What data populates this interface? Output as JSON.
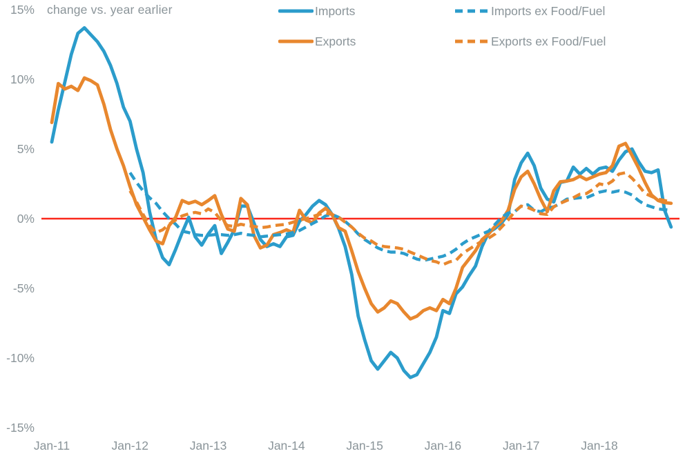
{
  "chart_data": {
    "type": "line",
    "title": "",
    "subtitle": "change vs. year earlier",
    "legend_position": "top",
    "grid": false,
    "ylim": [
      -15,
      15
    ],
    "y_tick_labels": [
      "15%",
      "10%",
      "5%",
      "0%",
      "-5%",
      "-10%",
      "-15%"
    ],
    "x_tick_labels": [
      "Jan-11",
      "Jan-12",
      "Jan-13",
      "Jan-14",
      "Jan-15",
      "Jan-16",
      "Jan-17",
      "Jan-18"
    ],
    "zero_line_color": "#fa271a",
    "axis_text_color": "#8a9499",
    "months": [
      "Jan-11",
      "Feb-11",
      "Mar-11",
      "Apr-11",
      "May-11",
      "Jun-11",
      "Jul-11",
      "Aug-11",
      "Sep-11",
      "Oct-11",
      "Nov-11",
      "Dec-11",
      "Jan-12",
      "Feb-12",
      "Mar-12",
      "Apr-12",
      "May-12",
      "Jun-12",
      "Jul-12",
      "Aug-12",
      "Sep-12",
      "Oct-12",
      "Nov-12",
      "Dec-12",
      "Jan-13",
      "Feb-13",
      "Mar-13",
      "Apr-13",
      "May-13",
      "Jun-13",
      "Jul-13",
      "Aug-13",
      "Sep-13",
      "Oct-13",
      "Nov-13",
      "Dec-13",
      "Jan-14",
      "Feb-14",
      "Mar-14",
      "Apr-14",
      "May-14",
      "Jun-14",
      "Jul-14",
      "Aug-14",
      "Sep-14",
      "Oct-14",
      "Nov-14",
      "Dec-14",
      "Jan-15",
      "Feb-15",
      "Mar-15",
      "Apr-15",
      "May-15",
      "Jun-15",
      "Jul-15",
      "Aug-15",
      "Sep-15",
      "Oct-15",
      "Nov-15",
      "Dec-15",
      "Jan-16",
      "Feb-16",
      "Mar-16",
      "Apr-16",
      "May-16",
      "Jun-16",
      "Jul-16",
      "Aug-16",
      "Sep-16",
      "Oct-16",
      "Nov-16",
      "Dec-16",
      "Jan-17",
      "Feb-17",
      "Mar-17",
      "Apr-17",
      "May-17",
      "Jun-17",
      "Jul-17",
      "Aug-17",
      "Sep-17",
      "Oct-17",
      "Nov-17",
      "Dec-17",
      "Jan-18",
      "Feb-18",
      "Mar-18",
      "Apr-18",
      "May-18",
      "Jun-18",
      "Jul-18",
      "Aug-18",
      "Sep-18",
      "Oct-18",
      "Nov-18",
      "Dec-18"
    ],
    "series": [
      {
        "name": "Imports",
        "color": "#2b9ccb",
        "dash": false,
        "values": [
          5.5,
          7.8,
          9.8,
          11.8,
          13.3,
          13.7,
          13.2,
          12.7,
          12.0,
          11.0,
          9.7,
          8.0,
          7.0,
          5.0,
          3.3,
          0.5,
          -1.5,
          -2.8,
          -3.3,
          -2.2,
          -1.0,
          0.1,
          -1.3,
          -1.9,
          -1.1,
          -0.5,
          -2.5,
          -1.7,
          -0.8,
          0.9,
          0.9,
          -0.3,
          -1.5,
          -2.0,
          -1.8,
          -2.0,
          -1.3,
          -1.2,
          -0.2,
          0.3,
          0.9,
          1.3,
          1.0,
          0.3,
          -0.7,
          -2.0,
          -4.0,
          -7.0,
          -8.7,
          -10.2,
          -10.8,
          -10.2,
          -9.6,
          -10.0,
          -10.9,
          -11.4,
          -11.2,
          -10.4,
          -9.6,
          -8.5,
          -6.6,
          -6.8,
          -5.4,
          -4.9,
          -4.1,
          -3.4,
          -2.0,
          -1.0,
          -0.7,
          -0.3,
          0.3,
          2.8,
          4.0,
          4.7,
          3.8,
          2.2,
          1.4,
          1.2,
          2.6,
          2.7,
          3.7,
          3.2,
          3.6,
          3.2,
          3.6,
          3.7,
          3.4,
          4.2,
          4.8,
          5.0,
          4.1,
          3.4,
          3.3,
          3.5,
          0.6,
          -0.6
        ]
      },
      {
        "name": "Exports",
        "color": "#e8872e",
        "dash": false,
        "values": [
          6.9,
          9.7,
          9.3,
          9.5,
          9.2,
          10.1,
          9.9,
          9.6,
          8.2,
          6.4,
          5.0,
          3.8,
          2.3,
          1.0,
          0.1,
          -0.8,
          -1.6,
          -1.8,
          -0.5,
          0.1,
          1.3,
          1.1,
          1.25,
          1.0,
          1.3,
          1.65,
          0.3,
          -0.75,
          -0.9,
          1.45,
          1.0,
          -1.2,
          -2.1,
          -1.9,
          -1.15,
          -1.0,
          -0.8,
          -1.0,
          0.6,
          -0.1,
          -0.3,
          0.4,
          0.75,
          0.3,
          -0.65,
          -0.9,
          -2.3,
          -3.8,
          -5.0,
          -6.1,
          -6.7,
          -6.4,
          -5.9,
          -6.1,
          -6.7,
          -7.2,
          -7.0,
          -6.6,
          -6.4,
          -6.6,
          -5.8,
          -6.1,
          -5.0,
          -3.5,
          -2.9,
          -2.3,
          -1.5,
          -1.1,
          -0.55,
          -0.15,
          0.6,
          2.1,
          3.0,
          3.4,
          2.5,
          1.4,
          0.5,
          2.0,
          2.65,
          2.7,
          2.8,
          3.05,
          2.8,
          3.0,
          3.2,
          3.3,
          3.8,
          5.2,
          5.4,
          4.55,
          3.65,
          2.6,
          1.7,
          1.3,
          1.15,
          1.1
        ]
      },
      {
        "name": "Imports ex Food/Fuel",
        "color": "#2b9ccb",
        "dash": true,
        "values": [
          null,
          null,
          null,
          null,
          null,
          null,
          null,
          null,
          null,
          null,
          null,
          null,
          3.3,
          2.6,
          2.0,
          1.5,
          1.1,
          0.5,
          0.0,
          -0.4,
          -0.9,
          -1.0,
          -1.15,
          -1.2,
          -1.2,
          -1.15,
          -1.15,
          -1.2,
          -1.15,
          -1.05,
          -1.15,
          -1.2,
          -1.3,
          -1.25,
          -1.2,
          -1.15,
          -1.1,
          -1.0,
          -0.85,
          -0.6,
          -0.35,
          -0.1,
          0.2,
          0.3,
          0.1,
          -0.2,
          -0.6,
          -1.1,
          -1.5,
          -1.8,
          -2.1,
          -2.3,
          -2.4,
          -2.4,
          -2.5,
          -2.7,
          -2.9,
          -3.0,
          -2.9,
          -2.8,
          -2.7,
          -2.5,
          -2.2,
          -1.8,
          -1.5,
          -1.3,
          -1.1,
          -0.9,
          -0.4,
          0.1,
          0.4,
          0.5,
          0.9,
          1.0,
          0.6,
          0.5,
          0.75,
          0.85,
          1.1,
          1.4,
          1.45,
          1.5,
          1.5,
          1.7,
          1.9,
          2.0,
          1.9,
          2.0,
          1.9,
          1.7,
          1.3,
          1.0,
          0.85,
          0.7,
          0.65,
          0.6
        ]
      },
      {
        "name": "Exports ex Food/Fuel",
        "color": "#e8872e",
        "dash": true,
        "values": [
          null,
          null,
          null,
          null,
          null,
          null,
          null,
          null,
          null,
          null,
          null,
          null,
          2.0,
          1.2,
          0.3,
          -0.5,
          -1.0,
          -0.8,
          -0.4,
          -0.1,
          0.2,
          0.35,
          0.45,
          0.35,
          0.7,
          0.45,
          -0.15,
          -0.5,
          -0.55,
          -0.4,
          -0.5,
          -0.55,
          -0.65,
          -0.6,
          -0.5,
          -0.45,
          -0.4,
          -0.25,
          -0.1,
          0,
          0.15,
          0.3,
          0.4,
          0.3,
          0.1,
          -0.25,
          -0.6,
          -1.05,
          -1.4,
          -1.6,
          -1.9,
          -2.0,
          -2.05,
          -2.1,
          -2.2,
          -2.4,
          -2.6,
          -2.8,
          -3.0,
          -3.1,
          -3.3,
          -3.1,
          -3.0,
          -2.5,
          -2.2,
          -1.9,
          -1.6,
          -1.4,
          -1.1,
          -0.6,
          -0.1,
          0.5,
          0.9,
          0.8,
          0.6,
          0.35,
          0.3,
          0.85,
          1.1,
          1.3,
          1.5,
          1.75,
          1.8,
          2.1,
          2.5,
          2.4,
          2.7,
          3.2,
          3.3,
          2.9,
          2.4,
          1.8,
          1.6,
          1.4,
          1.3,
          1.2
        ]
      }
    ]
  }
}
